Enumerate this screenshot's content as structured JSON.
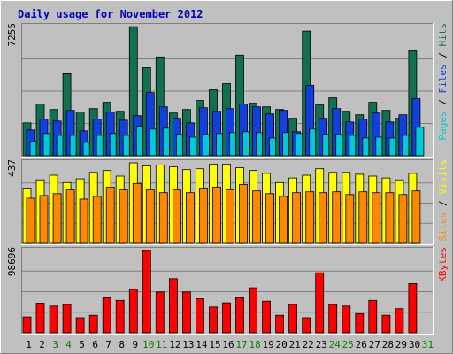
{
  "chart_data": {
    "type": "bar",
    "title": "Daily usage for November 2012",
    "days": [
      "1",
      "2",
      "3",
      "4",
      "5",
      "6",
      "7",
      "8",
      "9",
      "10",
      "11",
      "12",
      "13",
      "14",
      "15",
      "16",
      "17",
      "18",
      "19",
      "20",
      "21",
      "22",
      "23",
      "24",
      "25",
      "26",
      "27",
      "28",
      "29",
      "30",
      "31"
    ],
    "weekend_days": [
      3,
      4,
      10,
      11,
      17,
      18,
      24,
      25,
      31
    ],
    "panels": [
      {
        "id": "hits",
        "max_label": "7255",
        "ylim": [
          0,
          7255
        ],
        "legend": [
          {
            "name": "Pages",
            "color": "#00c8d8"
          },
          {
            "name": "Files",
            "color": "#1040e0"
          },
          {
            "name": "Hits",
            "color": "#107050"
          }
        ],
        "separator": " / ",
        "series": [
          {
            "name": "Hits",
            "color": "#107050",
            "values": [
              1850,
              2900,
              2600,
              4600,
              2450,
              2650,
              3000,
              2500,
              7250,
              4950,
              5550,
              2400,
              2600,
              3100,
              3700,
              4050,
              5650,
              2950,
              2750,
              2600,
              2100,
              7000,
              2850,
              3250,
              2500,
              2300,
              3000,
              2550,
              2100,
              5900,
              0
            ]
          },
          {
            "name": "Files",
            "color": "#1040e0",
            "values": [
              1450,
              2050,
              1950,
              2550,
              1400,
              2050,
              2450,
              2000,
              2250,
              3550,
              2750,
              2100,
              1850,
              2700,
              2500,
              2650,
              2900,
              2750,
              2350,
              2550,
              1350,
              3950,
              2100,
              2650,
              1900,
              2050,
              2400,
              1900,
              2300,
              3200,
              0
            ]
          },
          {
            "name": "Pages",
            "color": "#00c8d8",
            "values": [
              800,
              1250,
              1150,
              1150,
              750,
              1150,
              1250,
              1150,
              1650,
              1500,
              1550,
              1200,
              1050,
              1200,
              1250,
              1300,
              1350,
              1300,
              1000,
              1300,
              1250,
              1500,
              1200,
              1200,
              1150,
              1000,
              1050,
              1000,
              1150,
              1600,
              0
            ]
          }
        ]
      },
      {
        "id": "visits",
        "max_label": "437",
        "ylim": [
          0,
          437
        ],
        "legend": [
          {
            "name": "Sites",
            "color": "#ff8800"
          },
          {
            "name": "Visits",
            "color": "#ffff00"
          }
        ],
        "separator": " / ",
        "series": [
          {
            "name": "Visits",
            "color": "#ffff00",
            "values": [
              300,
              345,
              370,
              330,
              350,
              385,
              395,
              365,
              437,
              420,
              425,
              415,
              400,
              405,
              430,
              430,
              410,
              395,
              380,
              330,
              355,
              370,
              405,
              385,
              385,
              375,
              365,
              355,
              345,
              380,
              0
            ]
          },
          {
            "name": "Sites",
            "color": "#ff8800",
            "values": [
              245,
              260,
              270,
              290,
              240,
              255,
              305,
              290,
              325,
              290,
              275,
              290,
              275,
              300,
              305,
              290,
              320,
              285,
              270,
              255,
              275,
              280,
              275,
              280,
              265,
              280,
              275,
              275,
              265,
              285,
              0
            ]
          }
        ]
      },
      {
        "id": "kbytes",
        "max_label": "98696",
        "ylim": [
          0,
          98696
        ],
        "legend": [
          {
            "name": "KBytes",
            "color": "#ff0000"
          }
        ],
        "separator": "",
        "series": [
          {
            "name": "KBytes",
            "color": "#ff0000",
            "values": [
              19000,
              35500,
              32000,
              34000,
              18000,
              21000,
              42000,
              39000,
              52000,
              98696,
              49000,
              65000,
              49000,
              41000,
              31000,
              36000,
              42000,
              54000,
              38000,
              21000,
              34000,
              18000,
              72000,
              34000,
              32000,
              23000,
              39000,
              21000,
              29000,
              59000,
              0
            ]
          }
        ]
      }
    ]
  }
}
